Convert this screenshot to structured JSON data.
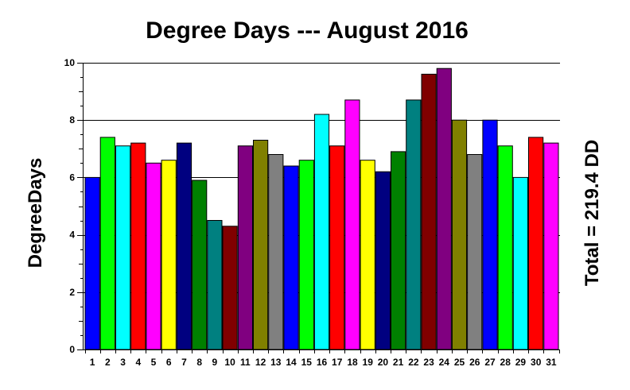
{
  "chart_data": {
    "type": "bar",
    "title": "Degree Days --- August 2016",
    "ylabel": "DegreeDays",
    "right_label": "Total = 219.4 DD",
    "ylim": [
      0,
      10
    ],
    "yticks": [
      "0",
      "2",
      "4",
      "6",
      "8",
      "10"
    ],
    "grid": "horizontal",
    "categories": [
      "1",
      "2",
      "3",
      "4",
      "5",
      "6",
      "7",
      "8",
      "9",
      "10",
      "11",
      "12",
      "13",
      "14",
      "15",
      "16",
      "17",
      "18",
      "19",
      "20",
      "21",
      "22",
      "23",
      "24",
      "25",
      "26",
      "27",
      "28",
      "29",
      "30",
      "31"
    ],
    "values": [
      6.0,
      7.4,
      7.1,
      7.2,
      6.5,
      6.6,
      7.2,
      5.9,
      4.5,
      4.3,
      7.1,
      7.3,
      6.8,
      6.4,
      6.6,
      8.2,
      7.1,
      8.7,
      6.6,
      6.2,
      6.9,
      8.7,
      9.6,
      9.8,
      8.0,
      6.8,
      8.0,
      7.1,
      6.0,
      7.4,
      7.2
    ],
    "colors": [
      "#0000FF",
      "#00FF00",
      "#00FFFF",
      "#FF0000",
      "#FF00FF",
      "#FFFF00",
      "#000080",
      "#008000",
      "#008080",
      "#800000",
      "#800080",
      "#808000",
      "#808080",
      "#0000FF",
      "#00FF00",
      "#00FFFF",
      "#FF0000",
      "#FF00FF",
      "#FFFF00",
      "#000080",
      "#008000",
      "#008080",
      "#800000",
      "#800080",
      "#808000",
      "#808080",
      "#0000FF",
      "#00FF00",
      "#00FFFF",
      "#FF0000",
      "#FF00FF"
    ]
  }
}
